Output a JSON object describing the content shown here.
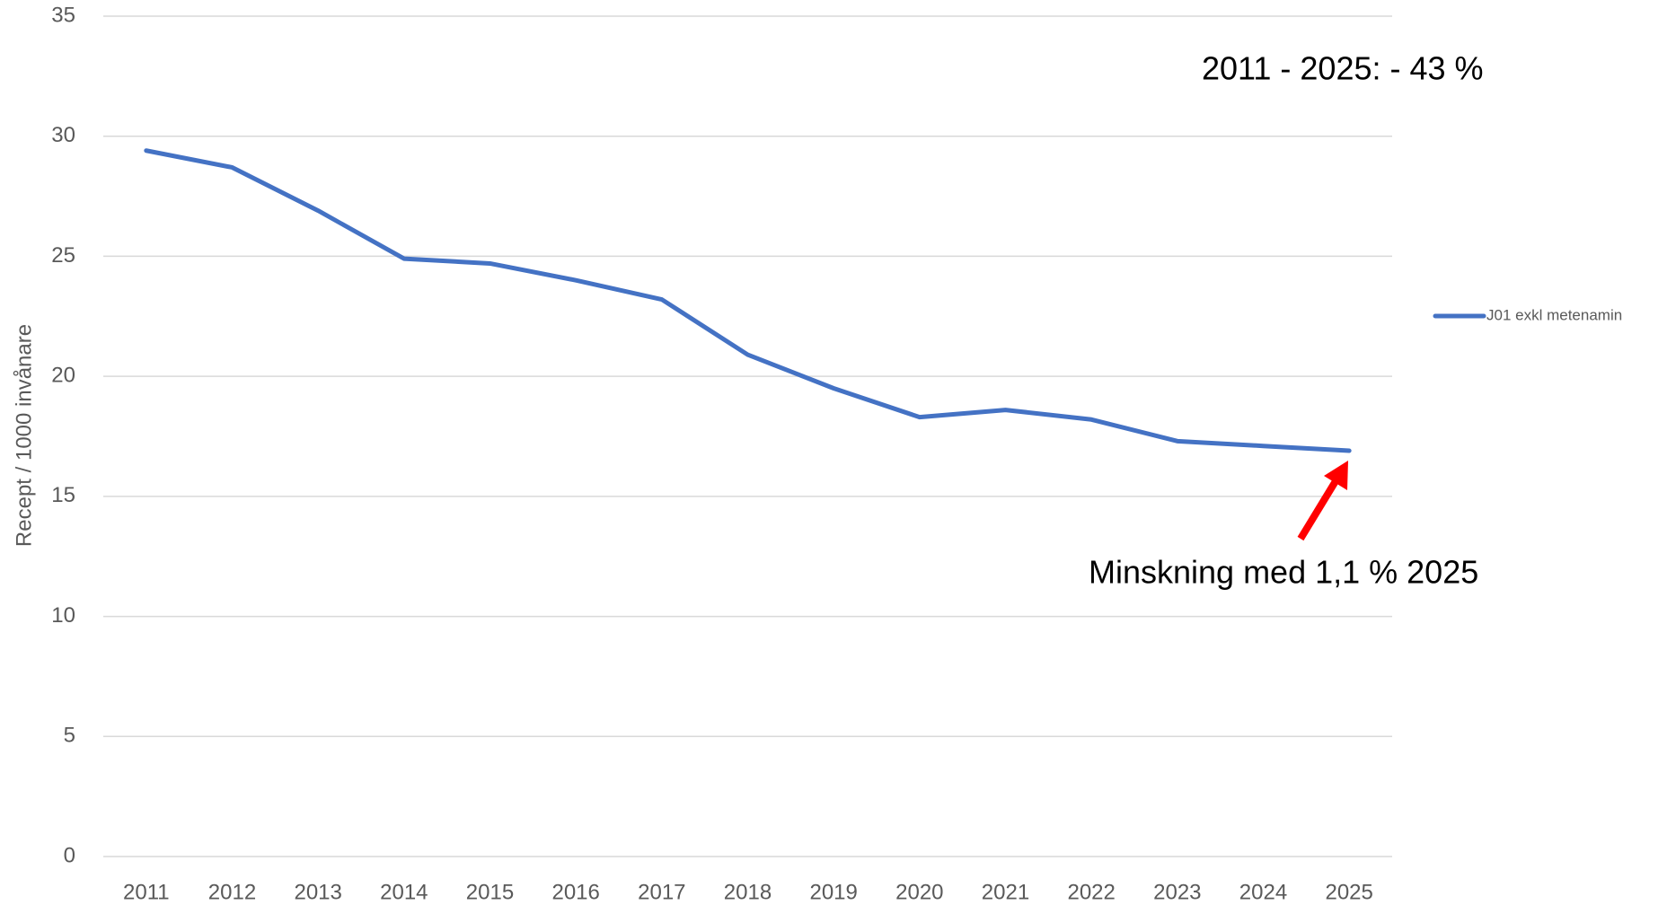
{
  "chart_data": {
    "type": "line",
    "y_axis_label": "Recept / 1000 invånare",
    "categories": [
      "2011",
      "2012",
      "2013",
      "2014",
      "2015",
      "2016",
      "2017",
      "2018",
      "2019",
      "2020",
      "2021",
      "2022",
      "2023",
      "2024",
      "2025"
    ],
    "series": [
      {
        "name": "J01 exkl metenamin",
        "color": "#4472c4",
        "values": [
          29.4,
          28.7,
          26.9,
          24.9,
          24.7,
          24.0,
          23.2,
          20.9,
          19.5,
          18.3,
          18.6,
          18.2,
          17.3,
          17.1,
          16.9
        ]
      }
    ],
    "ylim": [
      0,
      35
    ],
    "yticks": [
      0,
      5,
      10,
      15,
      20,
      25,
      30,
      35
    ],
    "grid": true,
    "legend": "right",
    "annotations": [
      "2011 - 2025: - 43 %",
      "Minskning med 1,1 % 2025"
    ]
  }
}
